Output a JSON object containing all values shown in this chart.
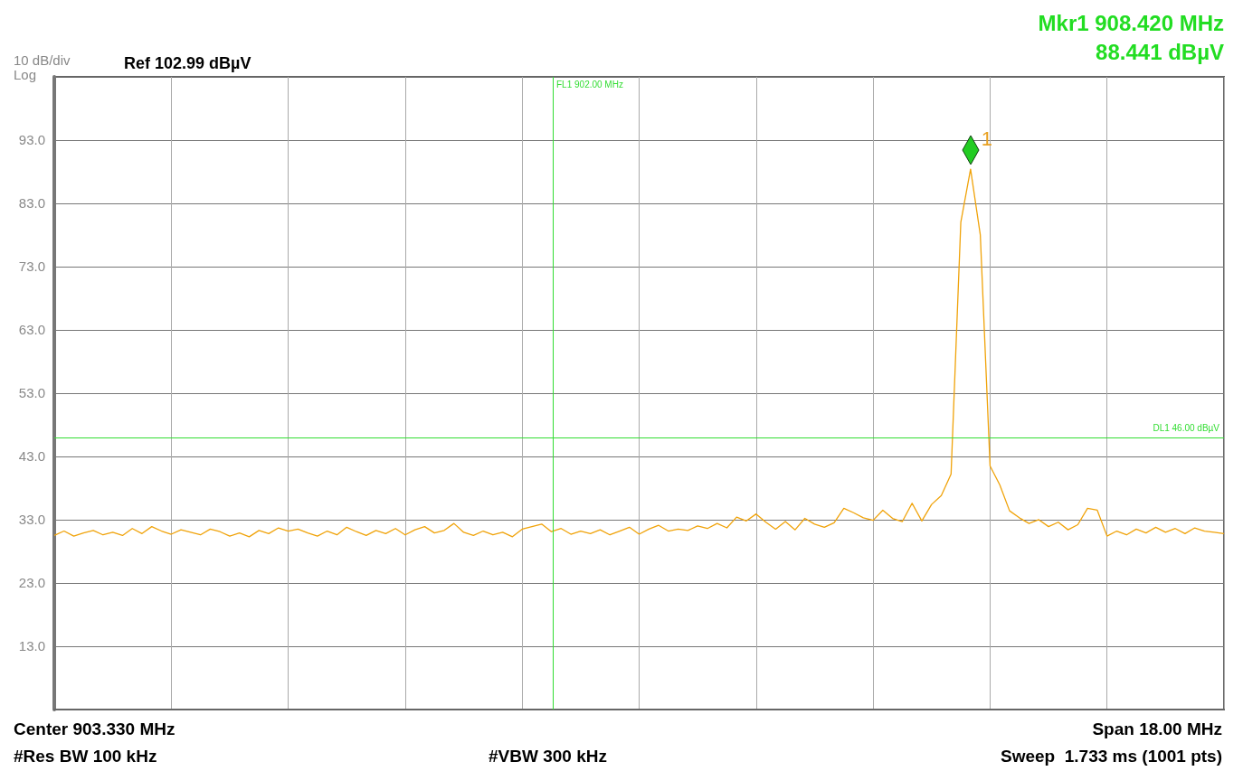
{
  "chart_data": {
    "type": "line",
    "title": "Ref 102.99 dBµV",
    "annotations": [
      "10 dB/div",
      "Log",
      "Mkr1 908.420 MHz",
      "88.441 dBµV",
      "Center 903.330 MHz",
      "Span 18.00 MHz",
      "#Res BW 100 kHz",
      "#VBW 300 kHz",
      "Sweep  1.733 ms (1001 pts)",
      "1",
      "FL1 902.00 MHz"
    ],
    "categories": [
      null,
      null,
      null,
      null,
      null,
      null,
      null,
      null,
      null,
      null,
      null,
      null,
      null,
      null,
      null,
      null,
      null,
      null,
      null,
      null,
      null,
      null,
      null,
      null,
      null,
      null,
      null,
      null,
      null,
      null,
      null,
      null,
      null,
      null,
      null,
      null,
      null,
      null,
      null,
      null,
      null,
      null,
      null,
      null,
      null,
      null,
      null,
      null,
      null,
      null,
      null,
      null,
      null,
      null,
      null,
      null,
      null,
      null,
      null,
      null,
      null,
      null,
      null,
      null,
      null,
      null,
      null,
      null,
      null,
      null,
      null,
      null,
      null,
      null,
      null,
      null,
      null,
      null,
      null,
      null,
      null,
      null,
      null,
      null,
      null,
      null,
      null,
      null,
      null,
      null,
      null,
      null,
      null,
      null,
      null,
      null,
      null,
      null,
      null,
      null,
      null,
      null,
      null,
      null,
      null,
      null,
      null,
      null,
      null,
      null,
      null,
      null,
      null,
      null,
      null,
      null,
      null,
      null,
      null,
      null,
      null
    ],
    "series": [
      {
        "type": "line",
        "color": "#f0a30a",
        "marker": "none",
        "values": [
          30.5,
          31.2,
          30.4,
          30.9,
          31.3,
          30.6,
          31.0,
          30.5,
          31.6,
          30.8,
          31.9,
          31.2,
          30.7,
          31.4,
          31.0,
          30.6,
          31.5,
          31.1,
          30.4,
          30.9,
          30.3,
          31.3,
          30.8,
          31.7,
          31.2,
          31.5,
          30.9,
          30.4,
          31.2,
          30.6,
          31.8,
          31.1,
          30.5,
          31.3,
          30.8,
          31.6,
          30.6,
          31.4,
          31.9,
          30.9,
          31.3,
          32.4,
          31.0,
          30.5,
          31.2,
          30.6,
          31.0,
          30.3,
          31.5,
          31.9,
          32.3,
          31.1,
          31.6,
          30.7,
          31.2,
          30.8,
          31.4,
          30.6,
          31.2,
          31.8,
          30.7,
          31.5,
          32.1,
          31.2,
          31.5,
          31.3,
          32.0,
          31.6,
          32.4,
          31.7,
          33.4,
          32.8,
          33.9,
          32.6,
          31.5,
          32.7,
          31.4,
          33.2,
          32.3,
          31.8,
          32.5,
          34.8,
          34.1,
          33.3,
          32.9,
          34.5,
          33.2,
          32.7,
          35.6,
          32.8,
          35.4,
          36.8,
          40.2,
          80.0,
          88.4,
          78.0,
          41.5,
          38.5,
          34.4,
          33.3,
          32.4,
          33.0,
          31.9,
          32.6,
          31.4,
          32.2,
          34.8,
          34.5,
          30.4,
          31.2,
          30.6,
          31.5,
          30.9,
          31.8,
          31.0,
          31.6,
          30.8,
          31.7,
          31.2,
          31.0,
          30.8
        ]
      }
    ],
    "ylim": [
      2.99,
      102.99
    ],
    "yticks": [
      {
        "value": 13,
        "label": "13.0"
      },
      {
        "value": 23,
        "label": "23.0"
      },
      {
        "value": 33,
        "label": "33.0"
      },
      {
        "value": 43,
        "label": "43.0"
      },
      {
        "value": 53,
        "label": "53.0"
      },
      {
        "value": 63,
        "label": "63.0"
      },
      {
        "value": 73,
        "label": "73.0"
      },
      {
        "value": 83,
        "label": "83.0"
      },
      {
        "value": 93,
        "label": "93.0"
      }
    ],
    "tick_labels": "y",
    "grid": true,
    "ref_lines": [
      {
        "axis": "y",
        "value": 46,
        "label": "DL1 46.00 dBµV",
        "color": "#33dd33"
      }
    ]
  }
}
